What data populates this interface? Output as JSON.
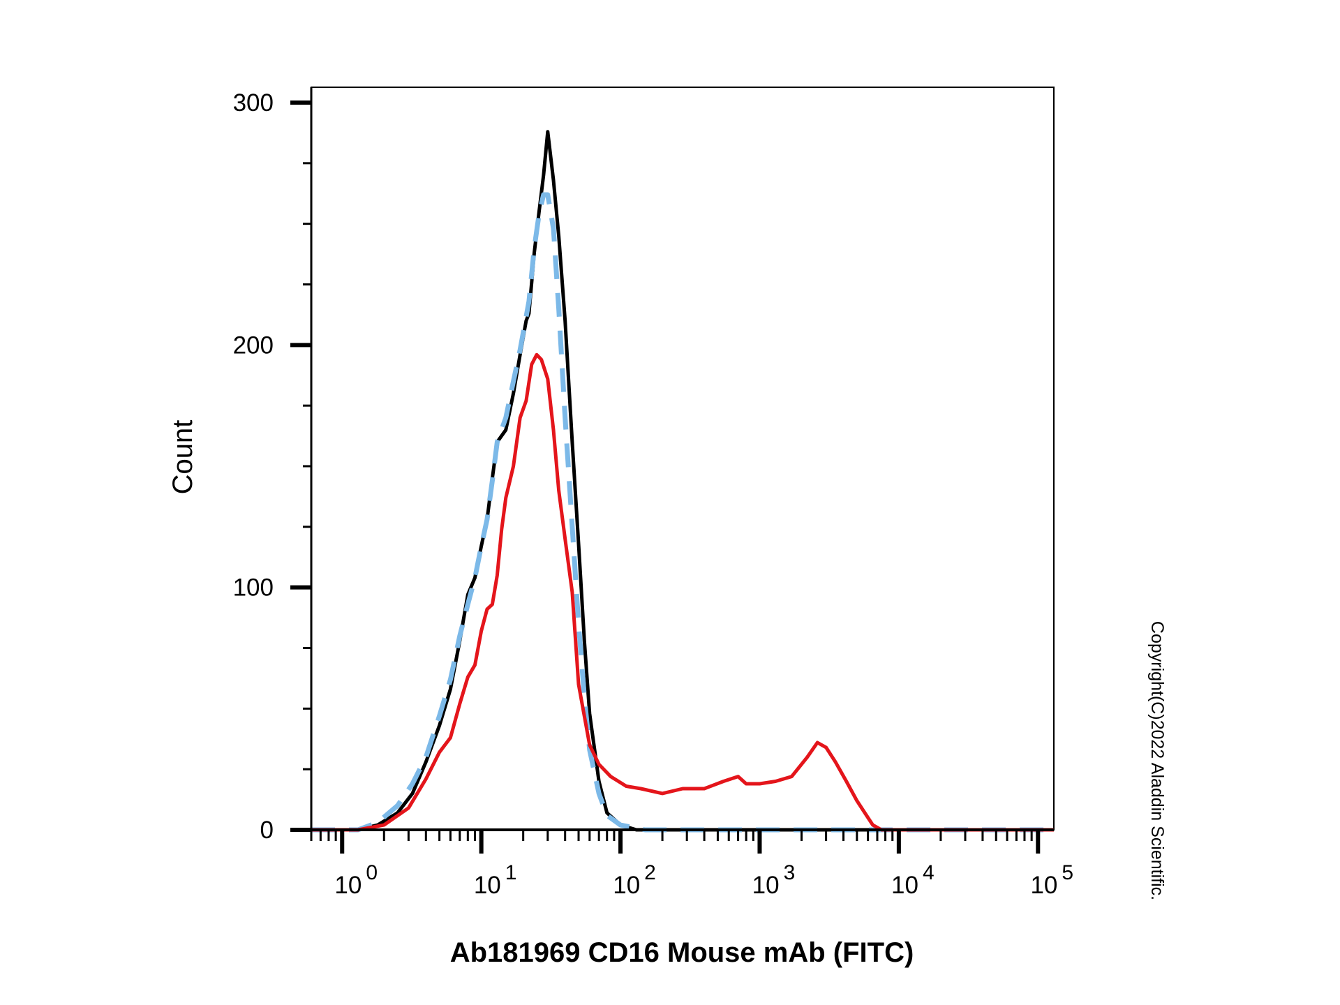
{
  "chart_data": {
    "type": "line",
    "title": "",
    "xlabel": "Ab181969 CD16 Mouse mAb (FITC)",
    "ylabel": "Count",
    "xscale": "log",
    "xlim": [
      0.6,
      130000
    ],
    "ylim": [
      0,
      300
    ],
    "grid": false,
    "legend": "none",
    "y_ticks": [
      0,
      100,
      200,
      300
    ],
    "x_ticks": [
      {
        "base": "10",
        "exp": "0",
        "value": 1
      },
      {
        "base": "10",
        "exp": "1",
        "value": 10
      },
      {
        "base": "10",
        "exp": "2",
        "value": 100
      },
      {
        "base": "10",
        "exp": "3",
        "value": 1000
      },
      {
        "base": "10",
        "exp": "4",
        "value": 10000
      },
      {
        "base": "10",
        "exp": "5",
        "value": 100000
      }
    ],
    "series": [
      {
        "color": "#000000",
        "dash": "solid",
        "points": [
          [
            0.6,
            0
          ],
          [
            1.3,
            0
          ],
          [
            1.8,
            2
          ],
          [
            2.5,
            7
          ],
          [
            3.2,
            15
          ],
          [
            4,
            28
          ],
          [
            5,
            43
          ],
          [
            6,
            58
          ],
          [
            7,
            78
          ],
          [
            8,
            97
          ],
          [
            9,
            104
          ],
          [
            10,
            117
          ],
          [
            11,
            128
          ],
          [
            12,
            145
          ],
          [
            13,
            160
          ],
          [
            15,
            165
          ],
          [
            17,
            180
          ],
          [
            19,
            196
          ],
          [
            21,
            210
          ],
          [
            22,
            213
          ],
          [
            24,
            238
          ],
          [
            26,
            255
          ],
          [
            28,
            270
          ],
          [
            30,
            288
          ],
          [
            33,
            268
          ],
          [
            36,
            245
          ],
          [
            40,
            210
          ],
          [
            45,
            160
          ],
          [
            50,
            118
          ],
          [
            55,
            78
          ],
          [
            60,
            48
          ],
          [
            70,
            20
          ],
          [
            80,
            7
          ],
          [
            100,
            2
          ],
          [
            130,
            0
          ],
          [
            130000,
            0
          ]
        ]
      },
      {
        "color": "#7cb9e8",
        "dash": "dashed",
        "points": [
          [
            0.6,
            0
          ],
          [
            1.3,
            0
          ],
          [
            1.8,
            3
          ],
          [
            2.5,
            10
          ],
          [
            3.2,
            19
          ],
          [
            4,
            30
          ],
          [
            5,
            47
          ],
          [
            6,
            62
          ],
          [
            7,
            80
          ],
          [
            8,
            93
          ],
          [
            9,
            104
          ],
          [
            10,
            117
          ],
          [
            11,
            128
          ],
          [
            12,
            144
          ],
          [
            13,
            160
          ],
          [
            15,
            170
          ],
          [
            17,
            185
          ],
          [
            19,
            198
          ],
          [
            22,
            218
          ],
          [
            24,
            240
          ],
          [
            26,
            254
          ],
          [
            28,
            262
          ],
          [
            30,
            262
          ],
          [
            33,
            248
          ],
          [
            36,
            215
          ],
          [
            40,
            170
          ],
          [
            45,
            125
          ],
          [
            50,
            85
          ],
          [
            55,
            55
          ],
          [
            60,
            33
          ],
          [
            70,
            15
          ],
          [
            80,
            6
          ],
          [
            100,
            2
          ],
          [
            150,
            0
          ],
          [
            130000,
            0
          ]
        ]
      },
      {
        "color": "#e4151b",
        "dash": "solid",
        "points": [
          [
            0.6,
            0
          ],
          [
            1.3,
            0
          ],
          [
            2,
            2
          ],
          [
            3,
            9
          ],
          [
            4,
            21
          ],
          [
            5,
            32
          ],
          [
            6,
            38
          ],
          [
            7,
            52
          ],
          [
            8,
            63
          ],
          [
            9,
            68
          ],
          [
            10,
            82
          ],
          [
            11,
            91
          ],
          [
            12,
            93
          ],
          [
            13,
            105
          ],
          [
            14,
            124
          ],
          [
            15,
            137
          ],
          [
            17,
            150
          ],
          [
            19,
            170
          ],
          [
            21,
            177
          ],
          [
            23,
            192
          ],
          [
            25,
            196
          ],
          [
            27,
            194
          ],
          [
            30,
            186
          ],
          [
            33,
            165
          ],
          [
            36,
            140
          ],
          [
            40,
            120
          ],
          [
            45,
            98
          ],
          [
            50,
            60
          ],
          [
            60,
            35
          ],
          [
            70,
            27
          ],
          [
            85,
            22
          ],
          [
            110,
            18
          ],
          [
            140,
            17
          ],
          [
            200,
            15
          ],
          [
            280,
            17
          ],
          [
            400,
            17
          ],
          [
            550,
            20
          ],
          [
            700,
            22
          ],
          [
            800,
            19
          ],
          [
            1000,
            19
          ],
          [
            1300,
            20
          ],
          [
            1700,
            22
          ],
          [
            2200,
            30
          ],
          [
            2600,
            36
          ],
          [
            3000,
            34
          ],
          [
            3500,
            28
          ],
          [
            4200,
            20
          ],
          [
            5000,
            12
          ],
          [
            5700,
            7
          ],
          [
            6500,
            2
          ],
          [
            7500,
            0
          ],
          [
            130000,
            0
          ]
        ]
      }
    ]
  },
  "copyright": "Copyright(C)2022 Aladdin Scientific."
}
